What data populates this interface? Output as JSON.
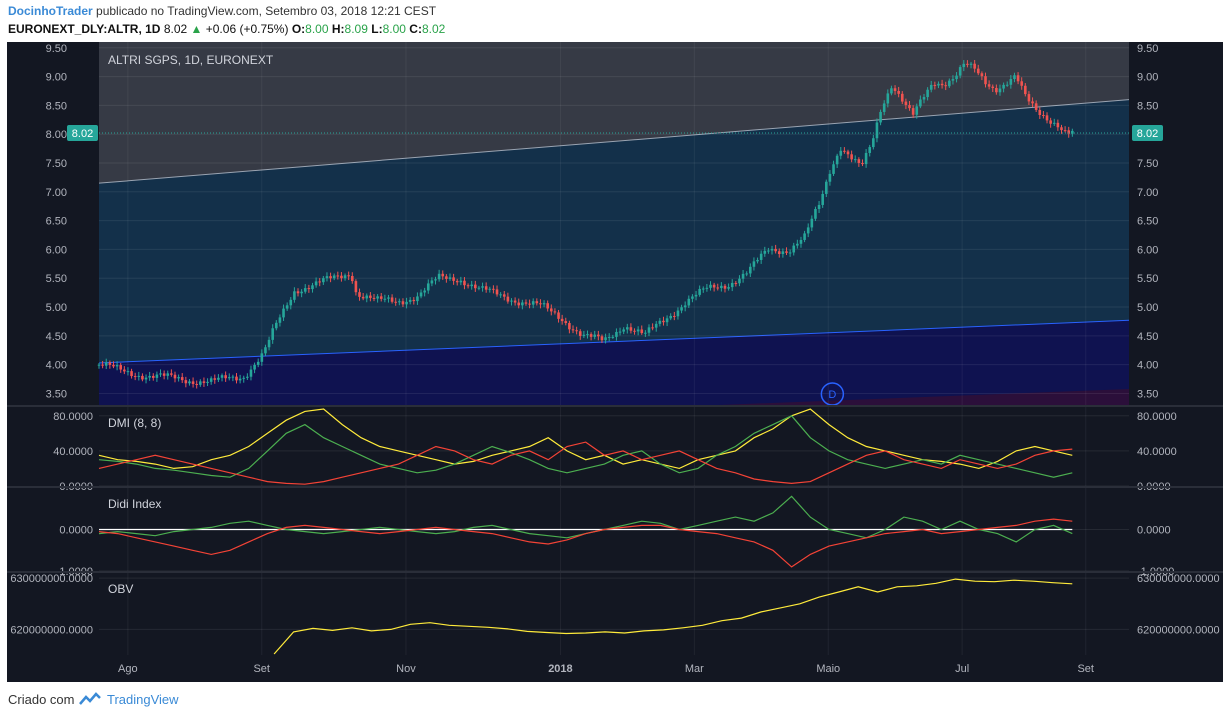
{
  "header": {
    "author": "DocinhoTrader",
    "published_text": "publicado no TradingView.com, Setembro 03, 2018 12:21 CEST",
    "symbol": "EURONEXT_DLY:ALTR, 1D",
    "last": "8.02",
    "change": "+0.06 (+0.75%)",
    "o_label": "O:",
    "o_val": "8.00",
    "h_label": "H:",
    "h_val": "8.09",
    "l_label": "L:",
    "l_val": "8.00",
    "c_label": "C:",
    "c_val": "8.02"
  },
  "footer": {
    "created": "Criado com",
    "brand": "TradingView"
  },
  "colors": {
    "up": "#26a69a",
    "down": "#ef5350",
    "accent": "#2aa34a",
    "background": "#131722"
  },
  "chart_data": [
    {
      "type": "candlestick",
      "title": "ALTRI SGPS, 1D, EURONEXT",
      "last_price_label": "8.02",
      "y_ticks": [
        "9.50",
        "9.00",
        "8.50",
        "8.00",
        "7.50",
        "7.00",
        "6.50",
        "6.00",
        "5.50",
        "5.00",
        "4.50",
        "4.00",
        "3.50"
      ],
      "ylim": [
        3.3,
        9.6
      ],
      "x_ticks": [
        "Ago",
        "Set",
        "Nov",
        "2018",
        "Mar",
        "Maio",
        "Jul",
        "Set"
      ],
      "marker": "D",
      "channel_upper": [
        [
          0,
          7.15
        ],
        [
          1,
          8.6
        ]
      ],
      "channel_lower": [
        [
          0,
          4.03
        ],
        [
          1,
          4.77
        ]
      ],
      "close_path": [
        [
          0.0,
          4.0
        ],
        [
          0.02,
          3.9
        ],
        [
          0.05,
          3.8
        ],
        [
          0.08,
          3.75
        ],
        [
          0.11,
          3.7
        ],
        [
          0.14,
          3.8
        ],
        [
          0.16,
          4.2
        ],
        [
          0.17,
          4.6
        ],
        [
          0.19,
          5.3
        ],
        [
          0.21,
          5.4
        ],
        [
          0.23,
          5.5
        ],
        [
          0.245,
          5.6
        ],
        [
          0.25,
          5.25
        ],
        [
          0.27,
          5.1
        ],
        [
          0.29,
          5.1
        ],
        [
          0.31,
          5.2
        ],
        [
          0.33,
          5.5
        ],
        [
          0.35,
          5.5
        ],
        [
          0.37,
          5.3
        ],
        [
          0.39,
          5.2
        ],
        [
          0.41,
          5.1
        ],
        [
          0.43,
          5.0
        ],
        [
          0.45,
          4.8
        ],
        [
          0.47,
          4.5
        ],
        [
          0.49,
          4.4
        ],
        [
          0.51,
          4.7
        ],
        [
          0.53,
          4.5
        ],
        [
          0.55,
          4.8
        ],
        [
          0.57,
          5.1
        ],
        [
          0.59,
          5.3
        ],
        [
          0.61,
          5.4
        ],
        [
          0.63,
          5.6
        ],
        [
          0.65,
          6.0
        ],
        [
          0.67,
          6.0
        ],
        [
          0.685,
          6.2
        ],
        [
          0.7,
          6.8
        ],
        [
          0.71,
          7.4
        ],
        [
          0.72,
          7.8
        ],
        [
          0.73,
          7.6
        ],
        [
          0.74,
          7.4
        ],
        [
          0.75,
          7.8
        ],
        [
          0.76,
          8.5
        ],
        [
          0.77,
          8.9
        ],
        [
          0.78,
          8.6
        ],
        [
          0.79,
          8.3
        ],
        [
          0.8,
          8.6
        ],
        [
          0.81,
          8.9
        ],
        [
          0.82,
          8.9
        ],
        [
          0.83,
          9.0
        ],
        [
          0.84,
          9.2
        ],
        [
          0.85,
          9.1
        ],
        [
          0.86,
          8.9
        ],
        [
          0.87,
          8.8
        ],
        [
          0.88,
          8.9
        ],
        [
          0.89,
          9.0
        ],
        [
          0.9,
          8.6
        ],
        [
          0.91,
          8.4
        ],
        [
          0.92,
          8.3
        ],
        [
          0.93,
          8.2
        ],
        [
          0.94,
          8.0
        ],
        [
          0.945,
          8.02
        ]
      ]
    },
    {
      "type": "line",
      "title": "DMI (8, 8)",
      "y_ticks": [
        "80.0000",
        "40.0000",
        "0.0000"
      ],
      "ylim": [
        0,
        90
      ],
      "series": [
        {
          "color": "#ffeb3b",
          "values": [
            35,
            30,
            28,
            25,
            20,
            22,
            30,
            35,
            45,
            60,
            75,
            85,
            88,
            70,
            55,
            45,
            40,
            35,
            30,
            25,
            28,
            35,
            40,
            45,
            55,
            40,
            30,
            35,
            25,
            30,
            25,
            20,
            30,
            35,
            40,
            55,
            65,
            80,
            90,
            70,
            55,
            45,
            40,
            35,
            30,
            28,
            25,
            20,
            28,
            40,
            45,
            40,
            35
          ]
        },
        {
          "color": "#4caf50",
          "values": [
            30,
            28,
            25,
            20,
            18,
            15,
            12,
            10,
            20,
            40,
            60,
            70,
            55,
            45,
            35,
            25,
            20,
            15,
            18,
            25,
            35,
            45,
            38,
            30,
            20,
            15,
            20,
            25,
            35,
            40,
            25,
            15,
            20,
            35,
            45,
            60,
            70,
            80,
            55,
            40,
            30,
            25,
            20,
            25,
            30,
            25,
            35,
            30,
            25,
            20,
            15,
            10,
            15
          ]
        },
        {
          "color": "#f44336",
          "values": [
            20,
            25,
            30,
            35,
            30,
            25,
            20,
            15,
            10,
            5,
            3,
            2,
            5,
            10,
            15,
            20,
            25,
            35,
            45,
            40,
            30,
            25,
            35,
            40,
            30,
            45,
            50,
            35,
            40,
            30,
            35,
            40,
            30,
            20,
            15,
            8,
            5,
            3,
            5,
            15,
            25,
            35,
            40,
            30,
            25,
            20,
            30,
            25,
            20,
            25,
            35,
            40,
            42
          ]
        }
      ]
    },
    {
      "type": "line",
      "title": "Didi Index",
      "y_ticks": [
        "0.0000",
        "-1.0000"
      ],
      "ylim": [
        -1.0,
        1.0
      ],
      "series": [
        {
          "color": "#ffffff",
          "values": [
            0,
            0,
            0,
            0,
            0,
            0,
            0,
            0,
            0,
            0,
            0,
            0,
            0,
            0,
            0,
            0,
            0,
            0,
            0,
            0,
            0,
            0,
            0,
            0,
            0,
            0,
            0,
            0,
            0,
            0,
            0,
            0,
            0,
            0,
            0,
            0,
            0,
            0,
            0,
            0,
            0,
            0,
            0,
            0,
            0,
            0,
            0,
            0,
            0,
            0,
            0,
            0,
            0
          ]
        },
        {
          "color": "#4caf50",
          "values": [
            -0.1,
            -0.05,
            -0.1,
            -0.15,
            -0.05,
            0.0,
            0.05,
            0.15,
            0.2,
            0.1,
            0.0,
            -0.05,
            -0.1,
            -0.05,
            0.0,
            0.05,
            0.0,
            -0.05,
            -0.1,
            -0.05,
            0.05,
            0.1,
            0.0,
            -0.1,
            -0.15,
            -0.2,
            -0.1,
            0.0,
            0.1,
            0.2,
            0.15,
            0.0,
            0.1,
            0.2,
            0.3,
            0.2,
            0.4,
            0.8,
            0.3,
            0.0,
            -0.1,
            -0.2,
            0.0,
            0.3,
            0.2,
            0.0,
            0.2,
            0.0,
            -0.1,
            -0.3,
            0.0,
            0.1,
            -0.1
          ]
        },
        {
          "color": "#f44336",
          "values": [
            -0.05,
            -0.1,
            -0.2,
            -0.3,
            -0.4,
            -0.5,
            -0.6,
            -0.5,
            -0.3,
            -0.1,
            0.05,
            0.1,
            0.05,
            0.0,
            -0.05,
            -0.1,
            -0.05,
            0.0,
            0.05,
            0.0,
            -0.05,
            -0.1,
            -0.2,
            -0.3,
            -0.35,
            -0.25,
            -0.1,
            0.0,
            0.05,
            0.1,
            0.1,
            0.0,
            -0.05,
            -0.1,
            -0.2,
            -0.3,
            -0.5,
            -0.9,
            -0.6,
            -0.4,
            -0.3,
            -0.2,
            -0.1,
            -0.05,
            0.0,
            -0.1,
            -0.05,
            0.0,
            0.05,
            0.1,
            0.2,
            0.25,
            0.2
          ]
        }
      ]
    },
    {
      "type": "line",
      "title": "OBV",
      "y_ticks": [
        "630000000.0000",
        "620000000.0000"
      ],
      "ylim": [
        615000000,
        631000000
      ],
      "series": [
        {
          "color": "#ffeb3b",
          "start": 0.17,
          "values": [
            615000000,
            619500000,
            620200000,
            619800000,
            620300000,
            619700000,
            620000000,
            621000000,
            621300000,
            620800000,
            620600000,
            620400000,
            620100000,
            619600000,
            619400000,
            619200000,
            619300000,
            619500000,
            619300000,
            619700000,
            619900000,
            620300000,
            620800000,
            621700000,
            622200000,
            623400000,
            624200000,
            625000000,
            626300000,
            627300000,
            628300000,
            627300000,
            628300000,
            628500000,
            629000000,
            629800000,
            629400000,
            629300000,
            629600000,
            629400000,
            629100000,
            628900000
          ]
        }
      ]
    }
  ]
}
